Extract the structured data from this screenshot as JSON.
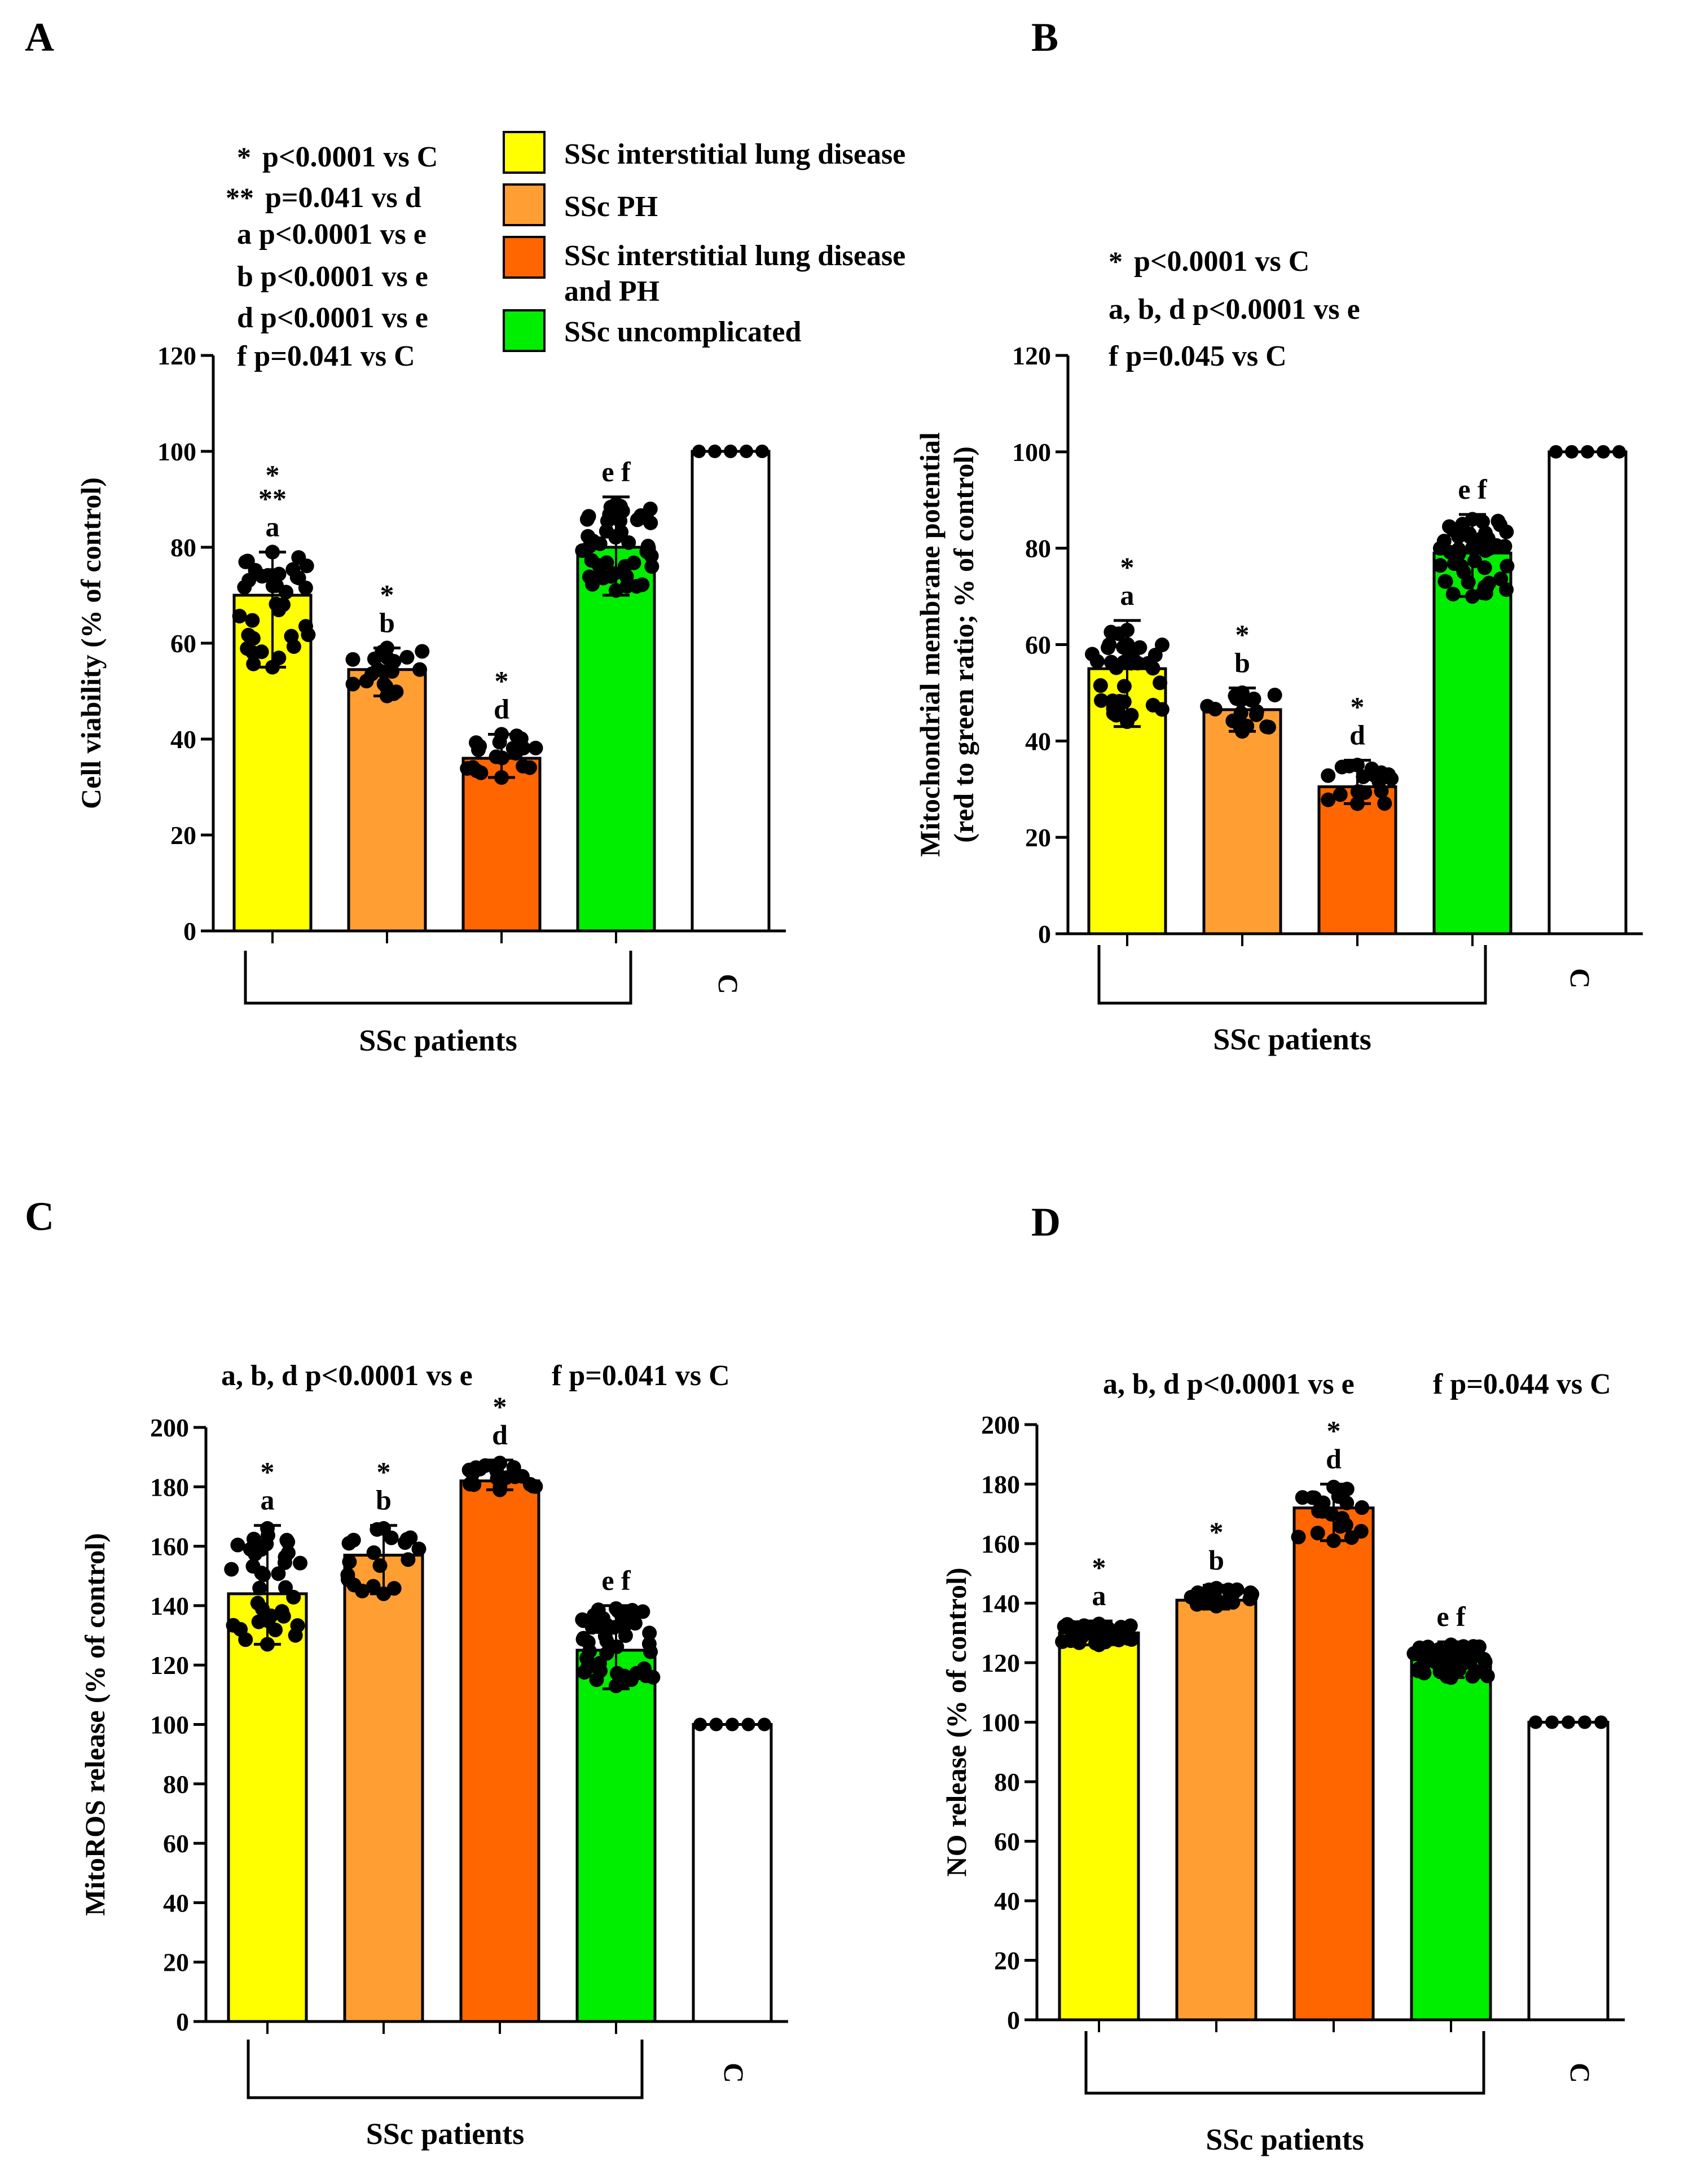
{
  "colors": {
    "ild": "#ffff00",
    "ph": "#ff9f33",
    "ild_ph": "#ff6600",
    "uncomplicated": "#00ee00",
    "control": "#ffffff"
  },
  "legend": [
    {
      "label": "SSc interstitial lung disease",
      "color_key": "ild"
    },
    {
      "label": "SSc PH",
      "color_key": "ph"
    },
    {
      "label": "SSc interstitial lung disease",
      "label2": "and PH",
      "color_key": "ild_ph"
    },
    {
      "label": "SSc uncomplicated",
      "color_key": "uncomplicated"
    }
  ],
  "chart_data": [
    {
      "type": "bar",
      "panel": "A",
      "ylabel": "Cell viability (% of control)",
      "xgroup_label": "SSc patients",
      "ylim": [
        0,
        120
      ],
      "yticks": [
        "0",
        "20",
        "40",
        "60",
        "80",
        "100",
        "120"
      ],
      "categories": [
        "SSc interstitial lung disease",
        "SSc PH",
        "SSc interstitial lung disease and PH",
        "SSc uncomplicated",
        "C"
      ],
      "control_tick_label": "C",
      "values": [
        70,
        54.5,
        36,
        80,
        100
      ],
      "error": [
        [
          55,
          79
        ],
        [
          49,
          59
        ],
        [
          32,
          41
        ],
        [
          70,
          90.5
        ],
        [
          100,
          100
        ]
      ],
      "spread": [
        [
          55,
          79
        ],
        [
          49,
          59
        ],
        [
          32,
          41
        ],
        [
          71,
          89
        ],
        [
          100,
          100
        ]
      ],
      "bar_labels": [
        [
          "*",
          "**",
          "a"
        ],
        [
          "*",
          "b"
        ],
        [
          "*",
          "d"
        ],
        [
          "e f"
        ],
        []
      ],
      "stats_notes": [
        {
          "sym": "*",
          "text": "p<0.0001 vs C"
        },
        {
          "sym": "**",
          "text": "p=0.041 vs d"
        },
        {
          "sym": "",
          "text": "a p<0.0001 vs e"
        },
        {
          "sym": "",
          "text": "b p<0.0001 vs e"
        },
        {
          "sym": "",
          "text": "d p<0.0001 vs e"
        },
        {
          "sym": "",
          "text": "f   p=0.041 vs C"
        }
      ]
    },
    {
      "type": "bar",
      "panel": "B",
      "ylabel": "Mitochondrial membrane potential",
      "ylabel2": "(red to green ratio; % of control)",
      "xgroup_label": "SSc patients",
      "ylim": [
        0,
        120
      ],
      "yticks": [
        "0",
        "20",
        "40",
        "60",
        "80",
        "100",
        "120"
      ],
      "categories": [
        "SSc interstitial lung disease",
        "SSc PH",
        "SSc interstitial lung disease and PH",
        "SSc uncomplicated",
        "C"
      ],
      "control_tick_label": "C",
      "values": [
        55,
        46.5,
        30.5,
        79,
        100
      ],
      "error": [
        [
          43,
          65
        ],
        [
          42,
          51
        ],
        [
          27,
          36
        ],
        [
          70,
          87
        ],
        [
          100,
          100
        ]
      ],
      "spread": [
        [
          44,
          63
        ],
        [
          42,
          50
        ],
        [
          27,
          35
        ],
        [
          70,
          86
        ],
        [
          100,
          100
        ]
      ],
      "bar_labels": [
        [
          "*",
          "a"
        ],
        [
          "*",
          "b"
        ],
        [
          "*",
          "d"
        ],
        [
          "e f"
        ],
        []
      ],
      "stats_notes": [
        {
          "sym": "*",
          "text": "p<0.0001 vs C"
        },
        {
          "sym": "",
          "text": "a, b, d p<0.0001 vs e"
        },
        {
          "sym": "",
          "text": "f   p=0.045 vs C"
        }
      ]
    },
    {
      "type": "bar",
      "panel": "C",
      "ylabel": "MitoROS release (% of control)",
      "xgroup_label": "SSc patients",
      "ylim": [
        0,
        200
      ],
      "yticks": [
        "0",
        "20",
        "40",
        "60",
        "80",
        "100",
        "120",
        "140",
        "160",
        "180",
        "200"
      ],
      "categories": [
        "SSc interstitial lung disease",
        "SSc PH",
        "SSc interstitial lung disease and PH",
        "SSc uncomplicated",
        "C"
      ],
      "control_tick_label": "C",
      "values": [
        144,
        157,
        182,
        125,
        100
      ],
      "error": [
        [
          127,
          167
        ],
        [
          144,
          167
        ],
        [
          179,
          189
        ],
        [
          112,
          140
        ],
        [
          100,
          100
        ]
      ],
      "spread": [
        [
          127,
          166
        ],
        [
          144,
          166
        ],
        [
          179,
          188
        ],
        [
          113,
          139
        ],
        [
          100,
          100
        ]
      ],
      "bar_labels": [
        [
          "*",
          "a"
        ],
        [
          "*",
          "b"
        ],
        [
          "*",
          "d"
        ],
        [
          "e f"
        ],
        []
      ],
      "stats_notes": [
        {
          "sym": "",
          "text": "a, b, d p<0.0001 vs e"
        },
        {
          "sym": "",
          "text": "f   p=0.041 vs C"
        }
      ]
    },
    {
      "type": "bar",
      "panel": "D",
      "ylabel": "NO release (% of control)",
      "xgroup_label": "SSc patients",
      "ylim": [
        0,
        200
      ],
      "yticks": [
        "0",
        "20",
        "40",
        "60",
        "80",
        "100",
        "120",
        "140",
        "160",
        "180",
        "200"
      ],
      "categories": [
        "SSc interstitial lung disease",
        "SSc PH",
        "SSc interstitial lung disease and PH",
        "SSc uncomplicated",
        "C"
      ],
      "control_tick_label": "C",
      "values": [
        130,
        141,
        172,
        121,
        100
      ],
      "error": [
        [
          126,
          134
        ],
        [
          138,
          146
        ],
        [
          161,
          180
        ],
        [
          115,
          127
        ],
        [
          100,
          100
        ]
      ],
      "spread": [
        [
          126,
          133
        ],
        [
          139,
          145
        ],
        [
          161,
          179
        ],
        [
          115,
          126
        ],
        [
          100,
          100
        ]
      ],
      "bar_labels": [
        [
          "*",
          "a"
        ],
        [
          "*",
          "b"
        ],
        [
          "*",
          "d"
        ],
        [
          "e f"
        ],
        []
      ],
      "stats_notes": [
        {
          "sym": "",
          "text": "a, b, d p<0.0001 vs e"
        },
        {
          "sym": "",
          "text": "f  p=0.044 vs C"
        }
      ]
    }
  ]
}
